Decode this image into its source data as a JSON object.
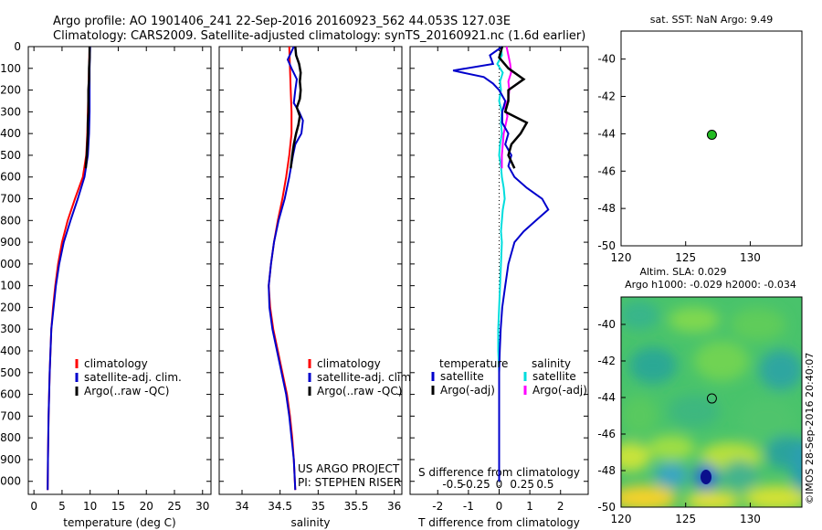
{
  "header": {
    "line1": "Argo profile: AO 1901406_241 22-Sep-2016 20160923_562 44.053S 127.03E",
    "line2": "Climatology: CARS2009. Satellite-adjusted climatology: synTS_20160921.nc (1.6d earlier)"
  },
  "credits": {
    "project": "US ARGO PROJECT",
    "pi": "PI: STEPHEN RISER",
    "side_stamp": "©IMOS 28-Sep-2016 20:40:07"
  },
  "colors": {
    "climatology": "#ff0000",
    "satellite": "#0000cc",
    "argo": "#000000",
    "sal_satellite": "#00dddd",
    "sal_argo": "#ff00ff",
    "marker": "#22bb22"
  },
  "chart_data": [
    {
      "id": "temperature",
      "type": "line",
      "xlabel": "temperature (deg C)",
      "xlim": [
        -1,
        31.5
      ],
      "xticks": [
        0,
        5,
        10,
        15,
        20,
        25,
        30
      ],
      "ylim": [
        2060,
        0
      ],
      "yticks": [
        0,
        100,
        200,
        300,
        400,
        500,
        600,
        700,
        800,
        900,
        1000,
        1100,
        1200,
        1300,
        1400,
        1500,
        1600,
        1700,
        1800,
        1900,
        2000
      ],
      "legend": [
        "climatology",
        "satellite-adj. clim.",
        "Argo(..raw -QC)"
      ],
      "series": [
        {
          "name": "climatology",
          "depth": [
            0,
            100,
            200,
            300,
            400,
            500,
            600,
            700,
            800,
            900,
            1000,
            1100,
            1200,
            1300,
            1500,
            1700,
            1900,
            2040
          ],
          "values": [
            9.9,
            9.8,
            9.7,
            9.6,
            9.5,
            9.3,
            8.7,
            7.3,
            6.0,
            5.0,
            4.3,
            3.8,
            3.4,
            3.1,
            2.8,
            2.6,
            2.5,
            2.45
          ]
        },
        {
          "name": "satellite-adj. clim.",
          "depth": [
            0,
            100,
            200,
            300,
            400,
            500,
            600,
            700,
            800,
            900,
            1000,
            1100,
            1200,
            1300,
            1500,
            1700,
            1900,
            2040
          ],
          "values": [
            10.0,
            9.9,
            9.9,
            9.9,
            9.8,
            9.6,
            9.0,
            7.8,
            6.5,
            5.3,
            4.5,
            3.9,
            3.5,
            3.1,
            2.8,
            2.6,
            2.5,
            2.45
          ]
        },
        {
          "name": "Argo(..raw -QC)",
          "depth": [
            0,
            50,
            100,
            150,
            200,
            250,
            300,
            350,
            400,
            500,
            560
          ],
          "values": [
            9.9,
            9.9,
            9.8,
            9.8,
            9.7,
            9.7,
            9.7,
            9.6,
            9.6,
            9.4,
            9.2
          ]
        }
      ]
    },
    {
      "id": "salinity",
      "type": "line",
      "xlabel": "salinity",
      "xlim": [
        33.7,
        36.1
      ],
      "xticks": [
        34,
        34.5,
        35,
        35.5,
        36
      ],
      "ylim": [
        2060,
        0
      ],
      "legend": [
        "climatology",
        "satellite-adj. clim.",
        "Argo(..raw -QC)"
      ],
      "series": [
        {
          "name": "climatology",
          "depth": [
            0,
            100,
            200,
            300,
            400,
            500,
            600,
            700,
            800,
            900,
            1000,
            1100,
            1200,
            1300,
            1400,
            1500,
            1600,
            1700,
            1800,
            1900,
            2040
          ],
          "values": [
            34.62,
            34.63,
            34.64,
            34.65,
            34.65,
            34.62,
            34.58,
            34.53,
            34.47,
            34.42,
            34.38,
            34.35,
            34.37,
            34.41,
            34.47,
            34.53,
            34.59,
            34.63,
            34.66,
            34.68,
            34.7
          ]
        },
        {
          "name": "satellite-adj. clim.",
          "depth": [
            0,
            60,
            100,
            150,
            200,
            260,
            300,
            340,
            400,
            450,
            500,
            600,
            700,
            800,
            900,
            1000,
            1100,
            1200,
            1300,
            1400,
            1500,
            1600,
            1700,
            1800,
            1900,
            2040
          ],
          "values": [
            34.68,
            34.6,
            34.65,
            34.72,
            34.7,
            34.68,
            34.75,
            34.8,
            34.78,
            34.7,
            34.67,
            34.62,
            34.56,
            34.48,
            34.42,
            34.38,
            34.35,
            34.36,
            34.4,
            34.46,
            34.52,
            34.58,
            34.62,
            34.65,
            34.68,
            34.7
          ]
        },
        {
          "name": "Argo(..raw -QC)",
          "depth": [
            0,
            40,
            80,
            120,
            160,
            200,
            240,
            280,
            320,
            360,
            400,
            450,
            500,
            560
          ],
          "values": [
            34.7,
            34.71,
            34.75,
            34.77,
            34.76,
            34.77,
            34.76,
            34.72,
            34.76,
            34.74,
            34.71,
            34.68,
            34.66,
            34.64
          ]
        }
      ]
    },
    {
      "id": "difference",
      "type": "line",
      "xlabel": "T difference from climatology",
      "xlabel_top": "S difference from climatology",
      "xlim": [
        -2.9,
        2.9
      ],
      "xticks": [
        -2,
        -1,
        0,
        1,
        2
      ],
      "xticks_s": [
        -0.5,
        -0.25,
        0,
        0.25,
        0.5
      ],
      "xtick_labels_s": [
        "-0.5",
        "-0.25",
        "0",
        "0.25",
        "0.5"
      ],
      "ylim": [
        2060,
        0
      ],
      "legend_title_t": "temperature",
      "legend_title_s": "salinity",
      "legend_t": [
        "satellite",
        "Argo(-adj)"
      ],
      "legend_s": [
        "satellite",
        "Argo(-adj)"
      ],
      "series": [
        {
          "name": "temperature satellite",
          "depth": [
            0,
            40,
            80,
            110,
            140,
            170,
            200,
            250,
            300,
            350,
            400,
            450,
            500,
            550,
            600,
            650,
            700,
            750,
            800,
            850,
            900,
            1000,
            1100,
            1200,
            1300,
            1400,
            1500,
            1600,
            1700,
            1800,
            1900,
            2000
          ],
          "values": [
            0.1,
            -0.3,
            -0.2,
            -1.5,
            -0.5,
            -0.2,
            0.0,
            0.2,
            0.1,
            0.1,
            0.3,
            0.2,
            0.4,
            0.3,
            0.5,
            0.9,
            1.4,
            1.6,
            1.2,
            0.8,
            0.5,
            0.3,
            0.2,
            0.1,
            0.05,
            0.02,
            0.0,
            0.0,
            0.0,
            0.0,
            0.0,
            0.0
          ]
        },
        {
          "name": "temperature Argo(-adj)",
          "depth": [
            0,
            50,
            100,
            150,
            200,
            250,
            300,
            350,
            400,
            450,
            500,
            560
          ],
          "values": [
            0.1,
            0.0,
            0.3,
            0.8,
            0.3,
            0.3,
            0.2,
            0.9,
            0.7,
            0.4,
            0.3,
            0.5
          ]
        },
        {
          "name": "salinity satellite",
          "depth": [
            0,
            40,
            80,
            120,
            160,
            200,
            250,
            300,
            350,
            400,
            450,
            500,
            550,
            600,
            650,
            700,
            750,
            800,
            850,
            900,
            1000,
            1100,
            1200,
            1300,
            1400,
            1500,
            1600,
            1700,
            1800,
            1900,
            2000
          ],
          "values": [
            0.02,
            0.03,
            -0.02,
            0.04,
            0.01,
            0.02,
            0.0,
            0.03,
            0.02,
            0.03,
            0.01,
            0.0,
            0.02,
            0.03,
            0.05,
            0.06,
            0.04,
            0.03,
            0.02,
            0.03,
            0.02,
            0.01,
            0.0,
            -0.01,
            -0.01,
            0.0,
            0.0,
            0.0,
            0.0,
            0.0,
            0.0
          ]
        },
        {
          "name": "salinity Argo(-adj)",
          "depth": [
            0,
            40,
            80,
            120,
            160,
            200,
            240,
            280,
            320,
            360,
            400,
            450,
            500,
            560
          ],
          "values": [
            0.08,
            0.1,
            0.12,
            0.13,
            0.1,
            0.11,
            0.1,
            0.06,
            0.09,
            0.07,
            0.05,
            0.04,
            0.03,
            0.03
          ]
        }
      ]
    },
    {
      "id": "sst-map",
      "type": "scatter",
      "title": "sat. SST: NaN Argo: 9.49",
      "xlim": [
        120,
        134
      ],
      "ylim": [
        -50,
        -38.5
      ],
      "xticks": [
        120,
        125,
        130
      ],
      "yticks": [
        -40,
        -42,
        -44,
        -46,
        -48,
        -50
      ],
      "points": [
        {
          "lon": 127.03,
          "lat": -44.053
        }
      ]
    },
    {
      "id": "sla-map",
      "type": "heatmap",
      "title": "Altim. SLA: 0.029",
      "subtitle": "Argo h1000: -0.029 h2000: -0.034",
      "xlim": [
        120,
        134
      ],
      "ylim": [
        -50,
        -38.5
      ],
      "xticks": [
        120,
        125,
        130
      ],
      "yticks": [
        -40,
        -42,
        -44,
        -46,
        -48,
        -50
      ],
      "points": [
        {
          "lon": 127.03,
          "lat": -44.053
        }
      ]
    }
  ]
}
